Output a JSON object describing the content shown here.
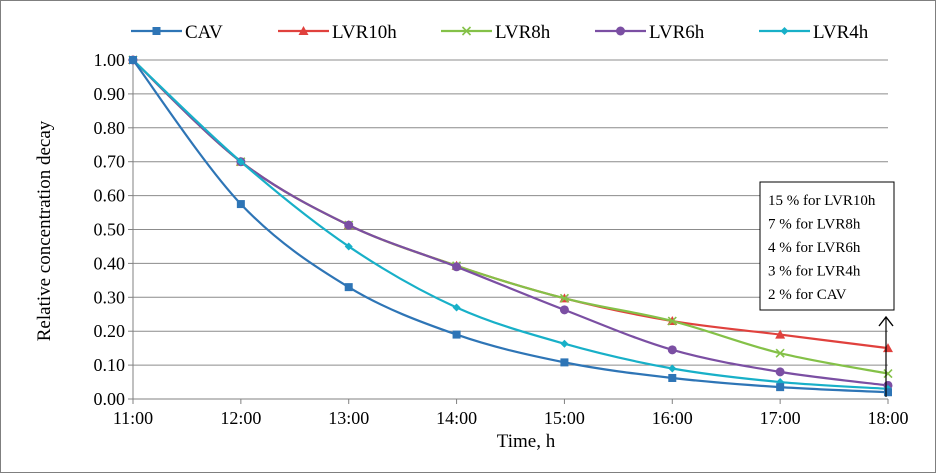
{
  "chart_data": {
    "type": "line",
    "xlabel": "Time, h",
    "ylabel": "Relative concentration decay",
    "categories": [
      "11:00",
      "12:00",
      "13:00",
      "14:00",
      "15:00",
      "16:00",
      "17:00",
      "18:00"
    ],
    "ylim": [
      0,
      1.0
    ],
    "yticks": [
      "0.00",
      "0.10",
      "0.20",
      "0.30",
      "0.40",
      "0.50",
      "0.60",
      "0.70",
      "0.80",
      "0.90",
      "1.00"
    ],
    "grid": true,
    "legend_position": "top",
    "series": [
      {
        "name": "CAV",
        "color": "#2e75b6",
        "marker": "square",
        "values": [
          1.0,
          0.575,
          0.33,
          0.19,
          0.108,
          0.062,
          0.035,
          0.02
        ]
      },
      {
        "name": "LVR10h",
        "color": "#e0413d",
        "marker": "triangle",
        "values": [
          1.0,
          0.7,
          0.513,
          0.393,
          0.297,
          0.23,
          0.19,
          0.15
        ]
      },
      {
        "name": "LVR8h",
        "color": "#84c148",
        "marker": "x",
        "values": [
          1.0,
          0.7,
          0.513,
          0.393,
          0.297,
          0.23,
          0.135,
          0.075
        ]
      },
      {
        "name": "LVR6h",
        "color": "#7b4fa3",
        "marker": "circle",
        "values": [
          1.0,
          0.7,
          0.513,
          0.39,
          0.263,
          0.145,
          0.08,
          0.04
        ]
      },
      {
        "name": "LVR4h",
        "color": "#18b0c8",
        "marker": "diamond",
        "values": [
          1.0,
          0.7,
          0.45,
          0.27,
          0.163,
          0.09,
          0.05,
          0.03
        ]
      }
    ],
    "annotation": {
      "lines": [
        "15 % for LVR10h",
        "7 % for LVR8h",
        "4 % for LVR6h",
        "3 % for LVR4h",
        "2 % for CAV"
      ]
    }
  }
}
